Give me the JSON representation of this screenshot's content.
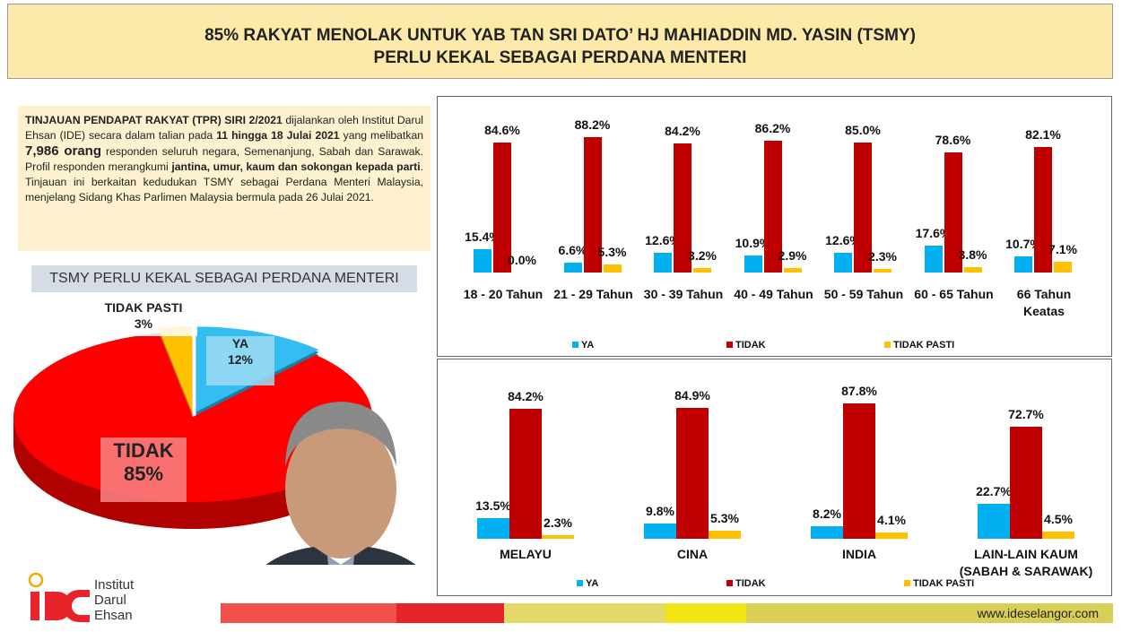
{
  "header": {
    "title": [
      "85% RAKYAT MENOLAK UNTUK YAB TAN SRI DATO’ HJ MAHIADDIN MD. YASIN (TSMY)",
      "PERLU KEKAL SEBAGAI PERDANA MENTERI"
    ]
  },
  "intro": [
    {
      "text": "TINJAUAN PENDAPAT RAKYAT (TPR) SIRI 2/2021",
      "bold": true
    },
    {
      "text": " dijalankan oleh Institut Darul Ehsan (IDE) secara dalam talian pada "
    },
    {
      "text": "11 hingga 18 Julai 2021",
      "bold": true
    },
    {
      "text": " yang melibatkan "
    },
    {
      "text": "7,986 orang",
      "bold": true,
      "large": true
    },
    {
      "text": " responden seluruh negara, Semenanjung, Sabah dan Sarawak. Profil responden merangkumi "
    },
    {
      "text": "jantina, umur, kaum dan sokongan kepada parti",
      "bold": true
    },
    {
      "text": ". Tinjauan ini berkaitan kedudukan TSMY sebagai Perdana Menteri Malaysia, menjelang Sidang Khas Parlimen Malaysia bermula pada 26 Julai 2021."
    }
  ],
  "chart_data": [
    {
      "type": "pie",
      "title": "TSMY PERLU KEKAL SEBAGAI PERDANA MENTERI",
      "categories": [
        "YA",
        "TIDAK",
        "TIDAK PASTI"
      ],
      "values": [
        12,
        85,
        3
      ],
      "value_labels": [
        "12%",
        "85%",
        "3%"
      ],
      "colors": [
        "#33bdf0",
        "#ff0000",
        "#ffc000"
      ]
    },
    {
      "type": "bar",
      "categories": [
        "18 - 20 Tahun",
        "21 - 29 Tahun",
        "30 - 39 Tahun",
        "40 - 49 Tahun",
        "50 - 59 Tahun",
        "60 - 65 Tahun",
        "66 Tahun Keatas"
      ],
      "series": [
        {
          "name": "YA",
          "color": "#00b0f0",
          "values": [
            15.4,
            6.6,
            12.6,
            10.9,
            12.6,
            17.6,
            10.7
          ],
          "value_labels": [
            "15.4%",
            "6.6%",
            "12.6%",
            "10.9%",
            "12.6%",
            "17.6%",
            "10.7%"
          ]
        },
        {
          "name": "TIDAK",
          "color": "#c00000",
          "values": [
            84.6,
            88.2,
            84.2,
            86.2,
            85.0,
            78.6,
            82.1
          ],
          "value_labels": [
            "84.6%",
            "88.2%",
            "84.2%",
            "86.2%",
            "85.0%",
            "78.6%",
            "82.1%"
          ]
        },
        {
          "name": "TIDAK PASTI",
          "color": "#ffc000",
          "values": [
            0.0,
            5.3,
            3.2,
            2.9,
            2.3,
            3.8,
            7.1
          ],
          "value_labels": [
            "0.0%",
            "5.3%",
            "3.2%",
            "2.9%",
            "2.3%",
            "3.8%",
            "7.1%"
          ]
        }
      ]
    },
    {
      "type": "bar",
      "categories": [
        "MELAYU",
        "CINA",
        "INDIA",
        "LAIN-LAIN KAUM (SABAH & SARAWAK)"
      ],
      "series": [
        {
          "name": "YA",
          "color": "#00b0f0",
          "values": [
            13.5,
            9.8,
            8.2,
            22.7
          ],
          "value_labels": [
            "13.5%",
            "9.8%",
            "8.2%",
            "22.7%"
          ]
        },
        {
          "name": "TIDAK",
          "color": "#c00000",
          "values": [
            84.2,
            84.9,
            87.8,
            72.7
          ],
          "value_labels": [
            "84.2%",
            "84.9%",
            "87.8%",
            "72.7%"
          ]
        },
        {
          "name": "TIDAK PASTI",
          "color": "#ffc000",
          "values": [
            2.3,
            5.3,
            4.1,
            4.5
          ],
          "value_labels": [
            "2.3%",
            "5.3%",
            "4.1%",
            "4.5%"
          ]
        }
      ]
    }
  ],
  "logo": {
    "lines": [
      "Institut",
      "Darul",
      "Ehsan"
    ]
  },
  "footer": {
    "url": "www.ideselangor.com"
  }
}
